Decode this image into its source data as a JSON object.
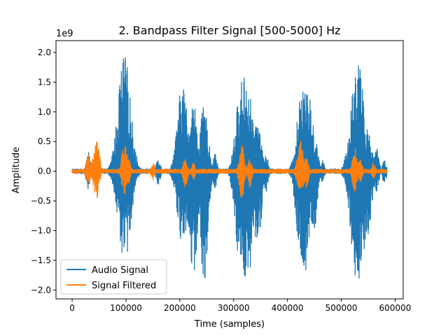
{
  "chart_data": {
    "type": "line",
    "title": "2. Bandpass Filter Signal [500-5000] Hz",
    "xlabel": "Time (samples)",
    "ylabel": "Amplitude",
    "y_offset_label": "1e9",
    "xlim": [
      -30000,
      615000
    ],
    "ylim": [
      -2.15,
      2.2
    ],
    "x_ticks": [
      {
        "value": 0,
        "label": "0"
      },
      {
        "value": 100000,
        "label": "100000"
      },
      {
        "value": 200000,
        "label": "200000"
      },
      {
        "value": 300000,
        "label": "300000"
      },
      {
        "value": 400000,
        "label": "400000"
      },
      {
        "value": 500000,
        "label": "500000"
      },
      {
        "value": 600000,
        "label": "600000"
      }
    ],
    "y_ticks": [
      {
        "value": -2.0,
        "label": "−2.0"
      },
      {
        "value": -1.5,
        "label": "−1.5"
      },
      {
        "value": -1.0,
        "label": "−1.0"
      },
      {
        "value": -0.5,
        "label": "−0.5"
      },
      {
        "value": 0.0,
        "label": "0.0"
      },
      {
        "value": 0.5,
        "label": "0.5"
      },
      {
        "value": 1.0,
        "label": "1.0"
      },
      {
        "value": 1.5,
        "label": "1.5"
      },
      {
        "value": 2.0,
        "label": "2.0"
      }
    ],
    "grid": false,
    "legend": {
      "placement": "lower-left"
    },
    "x_range": [
      0,
      585000
    ],
    "series": [
      {
        "name": "Audio Signal",
        "color": "#1f77b4",
        "baseline_noise": 0.04,
        "events": [
          {
            "x": 30000,
            "max": 0.32,
            "min": -0.3
          },
          {
            "x": 45000,
            "max": 0.35,
            "min": -0.25
          },
          {
            "x": 78000,
            "max": 0.45,
            "min": -0.3
          },
          {
            "x": 97000,
            "max": 1.98,
            "min": -1.55
          },
          {
            "x": 103000,
            "max": 1.2,
            "min": -1.15
          },
          {
            "x": 115000,
            "max": 0.35,
            "min": -0.3
          },
          {
            "x": 160000,
            "max": 0.25,
            "min": -0.25
          },
          {
            "x": 195000,
            "max": 0.15,
            "min": -0.15
          },
          {
            "x": 205000,
            "max": 1.5,
            "min": -1.3
          },
          {
            "x": 225000,
            "max": 1.2,
            "min": -1.85
          },
          {
            "x": 245000,
            "max": 1.1,
            "min": -1.85
          },
          {
            "x": 265000,
            "max": 0.3,
            "min": -0.3
          },
          {
            "x": 310000,
            "max": 1.2,
            "min": -1.5
          },
          {
            "x": 320000,
            "max": 1.75,
            "min": -1.8
          },
          {
            "x": 330000,
            "max": 1.25,
            "min": -1.95
          },
          {
            "x": 345000,
            "max": 0.9,
            "min": -1.4
          },
          {
            "x": 360000,
            "max": 0.3,
            "min": -0.35
          },
          {
            "x": 420000,
            "max": 0.7,
            "min": -1.3
          },
          {
            "x": 430000,
            "max": 1.7,
            "min": -1.95
          },
          {
            "x": 440000,
            "max": 1.25,
            "min": -1.3
          },
          {
            "x": 450000,
            "max": 0.7,
            "min": -1.0
          },
          {
            "x": 465000,
            "max": 0.2,
            "min": -0.2
          },
          {
            "x": 520000,
            "max": 0.75,
            "min": -1.2
          },
          {
            "x": 530000,
            "max": 1.95,
            "min": -1.95
          },
          {
            "x": 540000,
            "max": 1.0,
            "min": -1.5
          },
          {
            "x": 550000,
            "max": 0.8,
            "min": -1.2
          },
          {
            "x": 565000,
            "max": 0.45,
            "min": -0.35
          },
          {
            "x": 580000,
            "max": 0.2,
            "min": -0.2
          }
        ]
      },
      {
        "name": "Signal Filtered",
        "color": "#ff7f0e",
        "baseline_noise": 0.035,
        "events": [
          {
            "x": 30000,
            "max": 0.3,
            "min": -0.28
          },
          {
            "x": 45000,
            "max": 0.6,
            "min": -0.48
          },
          {
            "x": 97000,
            "max": 0.48,
            "min": -0.42
          },
          {
            "x": 103000,
            "max": 0.35,
            "min": -0.3
          },
          {
            "x": 150000,
            "max": 0.15,
            "min": -0.15
          },
          {
            "x": 210000,
            "max": 0.25,
            "min": -0.3
          },
          {
            "x": 225000,
            "max": 0.15,
            "min": -0.15
          },
          {
            "x": 315000,
            "max": 0.45,
            "min": -0.5
          },
          {
            "x": 330000,
            "max": 0.22,
            "min": -0.3
          },
          {
            "x": 420000,
            "max": 0.3,
            "min": -0.3
          },
          {
            "x": 425000,
            "max": 0.55,
            "min": -0.38
          },
          {
            "x": 435000,
            "max": 0.25,
            "min": -0.3
          },
          {
            "x": 525000,
            "max": 0.4,
            "min": -0.35
          },
          {
            "x": 535000,
            "max": 0.22,
            "min": -0.2
          },
          {
            "x": 560000,
            "max": 0.15,
            "min": -0.15
          }
        ]
      }
    ]
  }
}
